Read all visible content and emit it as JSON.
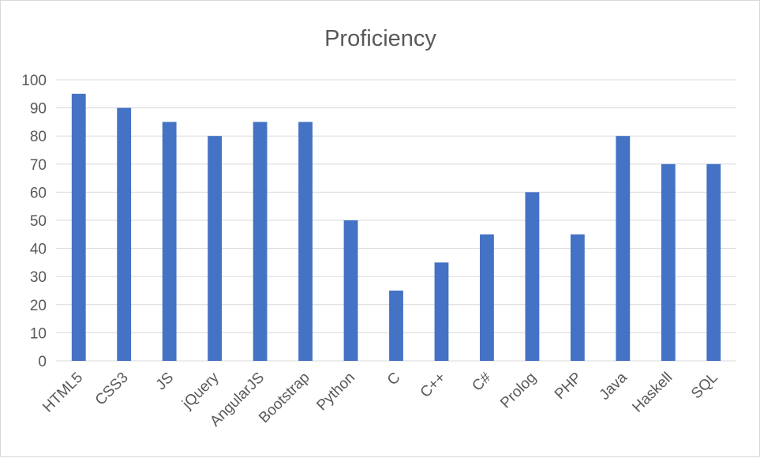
{
  "chart_data": {
    "type": "bar",
    "title": "Proficiency",
    "xlabel": "",
    "ylabel": "",
    "categories": [
      "HTML5",
      "CSS3",
      "JS",
      "jQuery",
      "AngularJS",
      "Bootstrap",
      "Python",
      "C",
      "C++",
      "C#",
      "Prolog",
      "PHP",
      "Java",
      "Haskell",
      "SQL"
    ],
    "values": [
      95,
      90,
      85,
      80,
      85,
      85,
      50,
      25,
      35,
      45,
      60,
      45,
      80,
      70,
      70
    ],
    "ylim": [
      0,
      100
    ],
    "yticks": [
      0,
      10,
      20,
      30,
      40,
      50,
      60,
      70,
      80,
      90,
      100
    ],
    "grid": true,
    "legend": "none",
    "colors": {
      "bar": "#4472c4",
      "grid": "#d9d9d9",
      "text": "#595959"
    }
  }
}
